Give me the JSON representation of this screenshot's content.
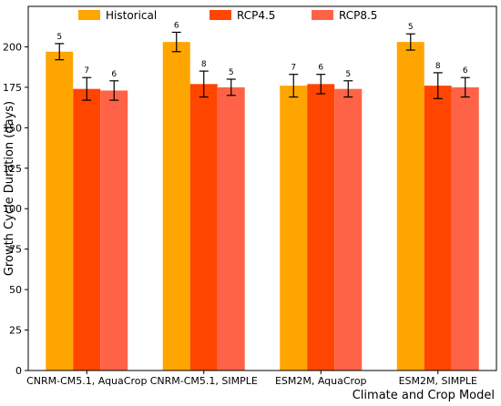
{
  "chart_data": {
    "type": "bar",
    "title": "",
    "xlabel": "Climate and Crop Model",
    "ylabel": "Growth Cycle Duration (days)",
    "ylim": [
      0,
      225
    ],
    "yticks": [
      0,
      25,
      50,
      75,
      100,
      125,
      150,
      175,
      200
    ],
    "grid": false,
    "legend_position": "top",
    "categories": [
      "CNRM-CM5.1, AquaCrop",
      "CNRM-CM5.1, SIMPLE",
      "ESM2M, AquaCrop",
      "ESM2M, SIMPLE"
    ],
    "series": [
      {
        "name": "Historical",
        "color": "#FFA500",
        "values": [
          197,
          203,
          176,
          203
        ],
        "errors": [
          5,
          6,
          7,
          5
        ],
        "labels": [
          "5",
          "6",
          "7",
          "5"
        ]
      },
      {
        "name": "RCP4.5",
        "color": "#FF4500",
        "values": [
          174,
          177,
          177,
          176
        ],
        "errors": [
          7,
          8,
          6,
          8
        ],
        "labels": [
          "7",
          "8",
          "6",
          "8"
        ]
      },
      {
        "name": "RCP8.5",
        "color": "#FF6347",
        "values": [
          173,
          175,
          174,
          175
        ],
        "errors": [
          6,
          5,
          5,
          6
        ],
        "labels": [
          "6",
          "5",
          "5",
          "6"
        ]
      }
    ]
  }
}
